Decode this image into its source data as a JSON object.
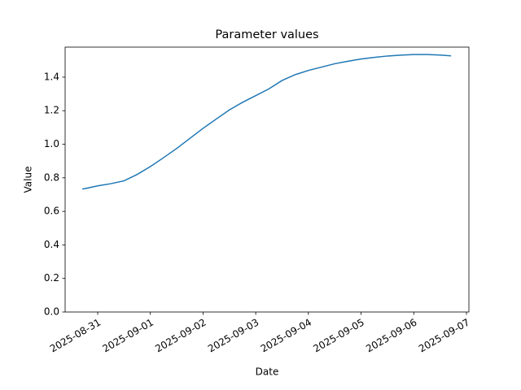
{
  "chart_data": {
    "type": "line",
    "title": "Parameter values",
    "x_label": "Date",
    "y_label": "Value",
    "x": [
      "2025-08-30T17:00",
      "2025-08-30T18:00",
      "2025-08-31T00:00",
      "2025-08-31T06:00",
      "2025-08-31T12:00",
      "2025-08-31T18:00",
      "2025-09-01T00:00",
      "2025-09-01T06:00",
      "2025-09-01T12:00",
      "2025-09-01T18:00",
      "2025-09-02T00:00",
      "2025-09-02T06:00",
      "2025-09-02T12:00",
      "2025-09-02T18:00",
      "2025-09-03T00:00",
      "2025-09-03T06:00",
      "2025-09-03T12:00",
      "2025-09-03T18:00",
      "2025-09-04T00:00",
      "2025-09-04T06:00",
      "2025-09-04T12:00",
      "2025-09-04T18:00",
      "2025-09-05T00:00",
      "2025-09-05T06:00",
      "2025-09-05T12:00",
      "2025-09-05T18:00",
      "2025-09-06T00:00",
      "2025-09-06T06:00",
      "2025-09-06T12:00",
      "2025-09-06T17:00"
    ],
    "series": [
      {
        "color": "#1f77b4",
        "values": [
          0.733,
          0.735,
          0.752,
          0.765,
          0.782,
          0.82,
          0.867,
          0.92,
          0.975,
          1.035,
          1.095,
          1.15,
          1.205,
          1.25,
          1.29,
          1.33,
          1.38,
          1.415,
          1.44,
          1.46,
          1.48,
          1.495,
          1.508,
          1.518,
          1.526,
          1.531,
          1.535,
          1.535,
          1.532,
          1.527
        ]
      }
    ],
    "xlim": [
      "2025-08-30T09:10",
      "2025-09-07T01:07"
    ],
    "xticks": [
      "2025-08-31",
      "2025-09-01",
      "2025-09-02",
      "2025-09-03",
      "2025-09-04",
      "2025-09-05",
      "2025-09-06",
      "2025-09-07"
    ],
    "ylim": [
      0,
      1.579
    ],
    "yticks": [
      0.0,
      0.2,
      0.4,
      0.6,
      0.8,
      1.0,
      1.2,
      1.4
    ],
    "grid": false
  }
}
